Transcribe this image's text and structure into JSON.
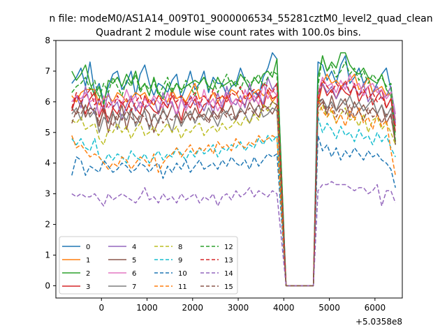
{
  "chart_data": {
    "type": "line",
    "suptitle": "n file: modeM0/AS1A14_009T01_9000006534_55281cztM0_level2_quad_clean",
    "title": "Quadrant 2 module wise count rates with 100.0s bins.",
    "xlabel": "",
    "ylabel": "",
    "x_offset_text": "+5.0358e8",
    "xlim": [
      -1000,
      6600
    ],
    "ylim": [
      -0.4,
      8
    ],
    "xticks": [
      0,
      1000,
      2000,
      3000,
      4000,
      5000,
      6000
    ],
    "xtick_labels": [
      "0",
      "1000",
      "2000",
      "3000",
      "4000",
      "5000",
      "6000"
    ],
    "yticks": [
      0,
      1,
      2,
      3,
      4,
      5,
      6,
      7,
      8
    ],
    "ytick_labels": [
      "0",
      "1",
      "2",
      "3",
      "4",
      "5",
      "6",
      "7",
      "8"
    ],
    "legend_location": "lower left",
    "x_start": -650,
    "bin": 100,
    "gap_start": 4050,
    "gap_end": 4650,
    "series": [
      {
        "name": "0",
        "color": "#1f77b4",
        "dash": "solid",
        "pre": [
          6.6,
          6.8,
          7.1,
          6.5,
          7.3,
          6.3,
          6.6,
          6.0,
          6.5,
          6.9,
          7.0,
          6.4,
          6.6,
          7.0,
          6.2,
          6.9,
          7.2,
          6.6,
          6.2,
          6.6,
          6.5,
          6.3,
          6.7,
          6.9,
          6.1,
          6.5,
          7.0,
          6.4,
          6.6,
          7.0,
          6.3,
          6.8,
          6.6,
          6.6,
          6.2,
          6.5,
          6.6,
          7.1,
          6.7,
          6.4,
          6.3,
          6.2,
          6.8,
          7.1,
          7.6,
          7.4
        ],
        "post": [
          7.3,
          7.2,
          6.7,
          7.0,
          6.6,
          7.2,
          7.5,
          6.6,
          6.8,
          7.1,
          6.6,
          6.8,
          6.3,
          6.6,
          6.9,
          7.1,
          6.4,
          5.6
        ]
      },
      {
        "name": "1",
        "color": "#ff7f0e",
        "dash": "solid",
        "pre": [
          6.2,
          6.0,
          6.3,
          6.4,
          6.4,
          6.4,
          5.9,
          6.1,
          6.2,
          6.0,
          6.3,
          6.2,
          6.0,
          6.1,
          6.3,
          6.2,
          6.3,
          6.0,
          5.9,
          6.2,
          6.1,
          6.0,
          6.4,
          6.1,
          6.2,
          6.0,
          6.3,
          6.6,
          6.1,
          6.2,
          6.0,
          6.3,
          6.0,
          6.2,
          6.1,
          6.4,
          6.3,
          6.0,
          6.2,
          6.1,
          6.3,
          6.4,
          6.2,
          6.3,
          6.0,
          6.2
        ],
        "post": [
          5.9,
          6.6,
          6.9,
          6.6,
          6.7,
          6.5,
          6.6,
          6.7,
          6.9,
          6.4,
          6.5,
          6.8,
          6.3,
          6.4,
          6.5,
          6.2,
          6.3,
          5.4
        ]
      },
      {
        "name": "2",
        "color": "#2ca02c",
        "dash": "solid",
        "pre": [
          7.0,
          6.7,
          6.9,
          7.2,
          6.6,
          6.2,
          6.5,
          5.9,
          6.7,
          6.6,
          6.8,
          6.5,
          6.9,
          6.6,
          7.0,
          6.4,
          6.6,
          6.2,
          6.8,
          6.3,
          6.1,
          6.6,
          6.3,
          6.6,
          6.4,
          6.5,
          6.6,
          6.7,
          6.6,
          6.8,
          6.5,
          6.4,
          6.8,
          6.5,
          6.6,
          6.7,
          6.5,
          6.9,
          6.7,
          6.4,
          6.8,
          6.6,
          6.9,
          7.0,
          6.8,
          7.4
        ],
        "post": [
          6.8,
          7.5,
          7.0,
          7.3,
          7.1,
          7.6,
          7.6,
          7.2,
          7.0,
          6.9,
          7.1,
          6.8,
          6.7,
          6.6,
          6.9,
          6.4,
          6.2,
          4.6
        ]
      },
      {
        "name": "3",
        "color": "#d62728",
        "dash": "solid",
        "pre": [
          5.7,
          6.2,
          6.0,
          5.6,
          6.1,
          6.3,
          5.5,
          5.9,
          5.3,
          5.8,
          5.6,
          6.0,
          5.7,
          6.1,
          5.8,
          5.6,
          6.2,
          5.9,
          5.7,
          5.6,
          6.0,
          5.8,
          6.2,
          5.9,
          5.4,
          6.0,
          5.8,
          6.1,
          5.6,
          5.9,
          6.0,
          5.8,
          6.0,
          5.7,
          6.2,
          5.9,
          6.1,
          6.0,
          5.9,
          6.3,
          6.0,
          6.2,
          5.8,
          6.4,
          6.1,
          6.2
        ],
        "post": [
          6.0,
          6.6,
          6.2,
          6.4,
          6.1,
          6.5,
          6.3,
          6.2,
          6.6,
          6.0,
          6.3,
          6.5,
          5.9,
          6.2,
          6.4,
          5.8,
          6.1,
          5.2
        ]
      },
      {
        "name": "4",
        "color": "#9467bd",
        "dash": "solid",
        "pre": [
          6.0,
          6.2,
          5.8,
          6.5,
          5.9,
          5.6,
          6.1,
          5.7,
          6.3,
          5.8,
          6.0,
          5.4,
          5.9,
          6.2,
          5.7,
          6.0,
          5.8,
          5.9,
          6.1,
          5.6,
          6.3,
          5.9,
          6.0,
          5.5,
          6.1,
          5.8,
          6.2,
          5.9,
          6.0,
          5.7,
          6.1,
          5.6,
          6.3,
          5.8,
          6.5,
          6.0,
          5.9,
          6.2,
          5.8,
          6.6,
          6.0,
          6.3,
          5.9,
          6.8,
          6.4,
          6.6
        ],
        "post": [
          6.2,
          6.6,
          6.3,
          6.5,
          6.1,
          6.4,
          6.6,
          6.3,
          6.5,
          6.2,
          6.6,
          6.0,
          6.3,
          6.5,
          6.1,
          6.2,
          6.5,
          5.3
        ]
      },
      {
        "name": "5",
        "color": "#8c564b",
        "dash": "solid",
        "pre": [
          5.8,
          5.6,
          6.0,
          5.5,
          5.8,
          5.7,
          5.2,
          5.8,
          5.0,
          5.6,
          5.4,
          5.9,
          5.1,
          5.7,
          5.5,
          5.3,
          5.8,
          5.6,
          5.0,
          5.4,
          5.7,
          5.5,
          5.9,
          5.6,
          5.3,
          5.7,
          5.4,
          5.8,
          5.5,
          5.6,
          5.4,
          5.7,
          5.5,
          5.8,
          5.6,
          5.9,
          5.4,
          5.8,
          5.6,
          6.0,
          5.7,
          5.5,
          5.9,
          5.8,
          5.6,
          5.9
        ],
        "post": [
          5.8,
          6.0,
          5.6,
          6.2,
          5.7,
          5.9,
          6.1,
          5.5,
          6.0,
          5.7,
          5.9,
          5.6,
          5.8,
          5.6,
          5.9,
          5.3,
          5.6,
          4.6
        ]
      },
      {
        "name": "6",
        "color": "#e377c2",
        "dash": "solid",
        "pre": [
          6.0,
          6.2,
          6.1,
          6.3,
          6.0,
          6.1,
          5.6,
          6.2,
          5.8,
          6.0,
          6.1,
          5.9,
          6.4,
          6.0,
          6.2,
          5.8,
          6.1,
          5.9,
          6.2,
          6.0,
          5.8,
          6.3,
          5.9,
          5.6,
          6.1,
          5.7,
          6.0,
          6.2,
          5.8,
          6.4,
          5.9,
          6.1,
          5.7,
          6.0,
          6.3,
          5.9,
          6.1,
          5.8,
          6.4,
          6.0,
          6.2,
          5.9,
          6.6,
          6.1,
          6.4,
          6.2
        ],
        "post": [
          6.3,
          6.8,
          6.5,
          6.6,
          6.3,
          6.7,
          6.4,
          6.9,
          6.5,
          6.6,
          6.2,
          6.5,
          6.6,
          6.3,
          6.4,
          6.1,
          6.3,
          5.6
        ]
      },
      {
        "name": "7",
        "color": "#7f7f7f",
        "dash": "solid",
        "pre": [
          5.6,
          5.8,
          5.4,
          5.9,
          5.5,
          5.7,
          5.0,
          5.5,
          5.3,
          5.7,
          5.1,
          5.6,
          5.4,
          5.8,
          5.2,
          5.5,
          5.7,
          5.1,
          5.6,
          5.3,
          5.8,
          5.4,
          5.0,
          5.6,
          5.2,
          5.5,
          5.7,
          5.3,
          5.6,
          5.4,
          5.8,
          5.5,
          5.2,
          5.6,
          5.7,
          5.4,
          5.5,
          5.8,
          5.6,
          5.3,
          5.7,
          5.9,
          5.5,
          5.6,
          5.8,
          5.7
        ],
        "post": [
          5.9,
          6.1,
          5.8,
          6.0,
          5.7,
          6.1,
          5.9,
          6.2,
          5.8,
          6.0,
          5.7,
          5.9,
          6.1,
          5.6,
          5.9,
          5.5,
          5.8,
          5.0
        ]
      },
      {
        "name": "8",
        "color": "#bcbd22",
        "dash": "6,3",
        "pre": [
          5.4,
          5.3,
          5.5,
          5.1,
          5.2,
          5.3,
          4.8,
          4.6,
          5.1,
          5.0,
          5.3,
          5.0,
          5.2,
          4.8,
          5.1,
          5.3,
          4.9,
          5.0,
          5.2,
          4.9,
          5.1,
          5.3,
          5.0,
          5.2,
          4.8,
          5.1,
          5.0,
          5.2,
          5.3,
          4.9,
          5.1,
          5.2,
          5.0,
          5.3,
          5.1,
          5.2,
          5.4,
          5.2,
          5.5,
          5.3,
          5.6,
          5.4,
          5.9,
          5.7,
          6.0,
          5.9
        ],
        "post": [
          5.6,
          5.9,
          5.5,
          5.7,
          5.3,
          5.6,
          5.8,
          5.4,
          5.5,
          5.2,
          5.6,
          5.0,
          5.4,
          5.5,
          5.1,
          5.3,
          5.0,
          4.6
        ]
      },
      {
        "name": "9",
        "color": "#17becf",
        "dash": "6,3",
        "pre": [
          4.8,
          4.6,
          4.8,
          4.5,
          4.4,
          4.8,
          4.2,
          4.0,
          4.3,
          4.1,
          4.3,
          4.2,
          4.0,
          4.4,
          4.2,
          4.1,
          4.3,
          4.0,
          4.2,
          4.4,
          4.1,
          4.3,
          4.2,
          4.5,
          4.3,
          4.1,
          4.4,
          4.2,
          4.5,
          4.3,
          4.4,
          4.6,
          4.2,
          4.5,
          4.4,
          4.6,
          4.5,
          4.7,
          4.4,
          4.6,
          4.5,
          4.8,
          4.6,
          4.9,
          4.7,
          4.9
        ],
        "post": [
          5.5,
          5.0,
          5.3,
          5.1,
          4.8,
          5.2,
          4.9,
          5.0,
          4.7,
          5.1,
          4.8,
          4.9,
          4.6,
          5.0,
          4.7,
          4.9,
          4.5,
          4.2
        ]
      },
      {
        "name": "10",
        "color": "#1f77b4",
        "dash": "6,3",
        "pre": [
          3.6,
          4.2,
          4.1,
          3.6,
          3.9,
          3.8,
          3.7,
          4.1,
          3.9,
          3.7,
          3.8,
          4.0,
          3.9,
          3.7,
          3.8,
          4.0,
          3.9,
          3.7,
          3.9,
          4.0,
          3.5,
          3.9,
          3.7,
          4.0,
          3.8,
          4.1,
          3.7,
          3.9,
          4.1,
          3.8,
          3.9,
          4.0,
          3.8,
          4.1,
          3.9,
          4.2,
          4.0,
          3.9,
          4.1,
          3.8,
          4.2,
          3.9,
          4.1,
          4.3,
          4.2,
          4.3
        ],
        "post": [
          4.9,
          4.4,
          4.6,
          4.2,
          4.5,
          4.1,
          4.4,
          4.2,
          4.5,
          4.3,
          4.1,
          4.4,
          4.2,
          4.3,
          4.1,
          4.0,
          3.8,
          3.2
        ]
      },
      {
        "name": "11",
        "color": "#ff7f0e",
        "dash": "6,3",
        "pre": [
          4.9,
          4.5,
          4.6,
          4.4,
          4.2,
          4.3,
          4.2,
          4.0,
          3.8,
          4.0,
          3.9,
          4.2,
          4.1,
          3.8,
          4.0,
          4.2,
          4.1,
          3.9,
          4.3,
          3.7,
          4.0,
          4.2,
          4.3,
          4.5,
          4.2,
          4.4,
          4.6,
          4.3,
          4.5,
          4.4,
          4.6,
          4.3,
          4.7,
          4.5,
          4.6,
          4.4,
          4.8,
          4.6,
          4.5,
          4.7,
          4.6,
          4.9,
          4.7,
          4.8,
          4.9,
          4.8
        ],
        "post": [
          6.1,
          5.7,
          5.5,
          5.8,
          5.3,
          5.6,
          5.2,
          5.7,
          5.4,
          5.8,
          5.3,
          5.5,
          5.1,
          5.6,
          5.2,
          5.4,
          4.4,
          3.6
        ]
      },
      {
        "name": "12",
        "color": "#2ca02c",
        "dash": "6,3",
        "pre": [
          6.3,
          6.5,
          6.6,
          6.8,
          6.4,
          6.7,
          6.1,
          6.6,
          6.3,
          6.8,
          6.5,
          6.2,
          6.7,
          6.5,
          6.9,
          6.3,
          6.6,
          6.4,
          6.7,
          6.2,
          6.5,
          6.8,
          6.4,
          6.6,
          6.3,
          6.7,
          6.5,
          6.2,
          6.6,
          6.8,
          6.4,
          6.7,
          6.3,
          6.6,
          6.9,
          6.5,
          6.7,
          6.4,
          6.8,
          6.6,
          6.7,
          6.9,
          6.5,
          6.8,
          7.0,
          6.9
        ],
        "post": [
          6.5,
          7.5,
          7.0,
          7.2,
          6.8,
          7.0,
          7.3,
          6.9,
          7.1,
          6.7,
          7.0,
          6.6,
          6.9,
          6.7,
          6.8,
          6.5,
          6.6,
          4.7
        ]
      },
      {
        "name": "13",
        "color": "#d62728",
        "dash": "6,3",
        "pre": [
          5.8,
          6.3,
          6.0,
          6.2,
          6.4,
          5.9,
          6.1,
          5.6,
          6.0,
          5.8,
          6.2,
          5.9,
          6.1,
          5.7,
          6.0,
          6.2,
          5.8,
          6.1,
          5.9,
          6.2,
          6.0,
          5.8,
          6.3,
          6.0,
          6.2,
          5.9,
          6.1,
          6.3,
          5.9,
          6.2,
          6.0,
          6.4,
          6.1,
          6.2,
          6.0,
          6.3,
          6.2,
          6.5,
          6.1,
          6.3,
          6.4,
          6.2,
          6.6,
          6.5,
          6.3,
          6.6
        ],
        "post": [
          6.2,
          6.7,
          6.5,
          6.3,
          6.6,
          6.4,
          6.7,
          6.3,
          6.5,
          6.2,
          6.4,
          6.1,
          6.3,
          6.0,
          6.2,
          5.8,
          6.1,
          5.0
        ]
      },
      {
        "name": "14",
        "color": "#9467bd",
        "dash": "6,3",
        "pre": [
          3.0,
          2.9,
          3.0,
          2.9,
          2.9,
          3.0,
          2.8,
          2.6,
          3.0,
          2.8,
          2.9,
          3.0,
          2.9,
          2.8,
          2.7,
          2.9,
          3.2,
          2.8,
          2.9,
          2.7,
          3.0,
          2.8,
          2.9,
          2.7,
          3.0,
          2.8,
          2.9,
          3.0,
          2.7,
          2.9,
          2.8,
          3.0,
          2.6,
          2.9,
          3.0,
          2.8,
          3.1,
          2.9,
          3.0,
          3.2,
          2.9,
          3.1,
          3.0,
          2.9,
          3.1,
          3.0
        ],
        "post": [
          3.1,
          3.3,
          3.3,
          3.4,
          3.3,
          3.3,
          3.3,
          3.2,
          3.1,
          3.2,
          3.2,
          3.0,
          3.1,
          3.3,
          2.6,
          3.1,
          3.1,
          2.7
        ]
      },
      {
        "name": "15",
        "color": "#8c564b",
        "dash": "6,3",
        "pre": [
          5.3,
          5.7,
          5.6,
          5.9,
          5.6,
          5.8,
          5.3,
          5.7,
          5.5,
          5.2,
          5.6,
          5.4,
          5.7,
          5.5,
          5.3,
          5.6,
          5.5,
          5.2,
          5.5,
          5.7,
          5.3,
          5.5,
          5.4,
          5.6,
          5.3,
          5.5,
          5.6,
          5.4,
          5.6,
          5.5,
          5.3,
          5.6,
          5.4,
          5.7,
          5.5,
          5.6,
          5.4,
          5.7,
          5.6,
          5.8,
          5.6,
          5.9,
          5.7,
          5.8,
          6.0,
          5.9
        ],
        "post": [
          6.0,
          6.1,
          5.7,
          5.9,
          5.5,
          5.8,
          5.6,
          5.9,
          5.5,
          5.7,
          5.4,
          5.8,
          5.5,
          5.6,
          5.3,
          5.6,
          5.5,
          4.7
        ]
      }
    ]
  }
}
